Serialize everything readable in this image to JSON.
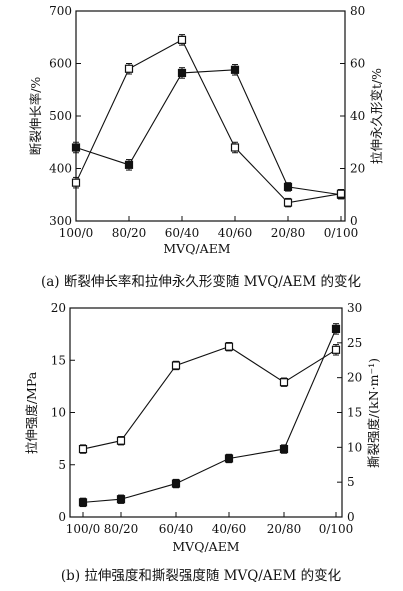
{
  "chart_data": [
    {
      "type": "line",
      "caption": "(a) 断裂伸长率和拉伸永久形变随 MVQ/AEM 的变化",
      "xlabel": "MVQ/AEM",
      "categories": [
        "100/0",
        "80/20",
        "60/40",
        "40/60",
        "20/80",
        "0/100"
      ],
      "y_left": {
        "label": "断裂伸长率/%",
        "range": [
          300,
          700
        ],
        "ticks": [
          300,
          400,
          500,
          600,
          700
        ]
      },
      "y_right": {
        "label": "拉伸永久形变t/%",
        "range": [
          0,
          80
        ],
        "ticks": [
          0,
          20,
          40,
          60,
          80
        ]
      },
      "series": [
        {
          "marker": "filled-square",
          "axis": "left",
          "values": [
            440,
            407,
            582,
            588,
            365,
            350
          ],
          "errors": [
            10,
            10,
            10,
            10,
            8,
            8
          ]
        },
        {
          "marker": "open-square",
          "axis": "left",
          "values": [
            373,
            590,
            645,
            440,
            335,
            352
          ],
          "errors": [
            10,
            10,
            10,
            10,
            8,
            8
          ]
        }
      ]
    },
    {
      "type": "line",
      "caption": "(b) 拉伸强度和撕裂强度随 MVQ/AEM 的变化",
      "xlabel": "MVQ/AEM",
      "categories": [
        "100/0",
        "80/20",
        "60/40",
        "40/60",
        "20/80",
        "0/100"
      ],
      "y_left": {
        "label": "拉伸强度/MPa",
        "range": [
          0,
          20
        ],
        "ticks": [
          0,
          5,
          10,
          15,
          20
        ]
      },
      "y_right": {
        "label": "撕裂强度/(kN·m⁻¹)",
        "range": [
          0,
          30
        ],
        "ticks": [
          0,
          5,
          10,
          15,
          20,
          25,
          30
        ]
      },
      "series": [
        {
          "marker": "filled-square",
          "axis": "left",
          "values": [
            1.4,
            1.7,
            3.2,
            5.6,
            6.5,
            18.0
          ],
          "errors": [
            0.4,
            0.4,
            0.4,
            0.4,
            0.4,
            0.5
          ]
        },
        {
          "marker": "open-square",
          "axis": "left",
          "values": [
            6.5,
            7.3,
            14.5,
            16.3,
            12.9,
            16.0
          ],
          "errors": [
            0.4,
            0.4,
            0.4,
            0.4,
            0.4,
            0.5
          ]
        }
      ]
    }
  ]
}
